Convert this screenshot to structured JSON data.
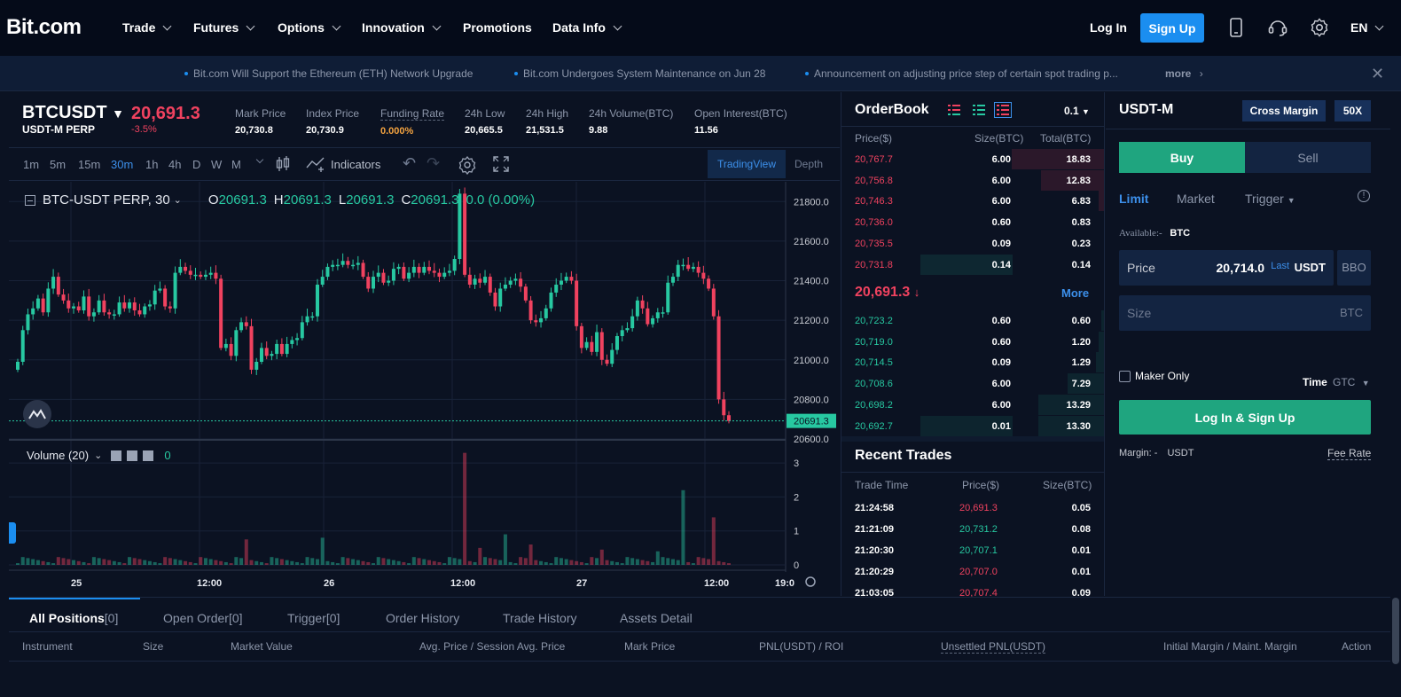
{
  "header": {
    "logo": "Bit.com",
    "nav": [
      {
        "label": "Trade",
        "dropdown": true
      },
      {
        "label": "Futures",
        "dropdown": true
      },
      {
        "label": "Options",
        "dropdown": true
      },
      {
        "label": "Innovation",
        "dropdown": true
      },
      {
        "label": "Promotions",
        "dropdown": false
      },
      {
        "label": "Data Info",
        "dropdown": true
      }
    ],
    "login": "Log In",
    "signup": "Sign Up",
    "lang": "EN"
  },
  "announcements": {
    "items": [
      "Bit.com Will Support the Ethereum (ETH) Network Upgrade",
      "Bit.com Undergoes System Maintenance on Jun 28",
      "Announcement on adjusting price step of certain spot trading p..."
    ],
    "more": "more"
  },
  "ticker": {
    "symbol": "BTCUSDT",
    "sub": "USDT-M PERP",
    "last": "20,691.3",
    "change": "-3.5%",
    "stats": [
      {
        "label": "Mark Price",
        "value": "20,730.8",
        "highlight": false
      },
      {
        "label": "Index Price",
        "value": "20,730.9",
        "highlight": false
      },
      {
        "label": "Funding Rate",
        "value": "0.000%",
        "highlight": true
      },
      {
        "label": "24h Low",
        "value": "20,665.5",
        "highlight": false
      },
      {
        "label": "24h High",
        "value": "21,531.5",
        "highlight": false
      },
      {
        "label": "24h Volume(BTC)",
        "value": "9.88",
        "highlight": false
      },
      {
        "label": "Open Interest(BTC)",
        "value": "11.56",
        "highlight": false
      }
    ]
  },
  "toolbar": {
    "timeframes": [
      "1m",
      "5m",
      "15m",
      "30m",
      "1h",
      "4h",
      "D",
      "W",
      "M"
    ],
    "active_tf": "30m",
    "indicators": "Indicators",
    "tradingview": "TradingView",
    "depth": "Depth"
  },
  "chart": {
    "legend_title": "BTC-USDT PERP, 30",
    "ohlc": {
      "O": "20691.3",
      "H": "20691.3",
      "L": "20691.3",
      "C": "20691.3",
      "chg": "0.0 (0.00%)"
    },
    "volume_label": "Volume (20)",
    "volume_value": "0",
    "price_axis": [
      "21800.0",
      "21600.0",
      "21400.0",
      "21200.0",
      "21000.0",
      "20800.0",
      "20600.0"
    ],
    "last_price_tag": "20691.3",
    "vol_axis": [
      "3",
      "2",
      "1",
      "0"
    ],
    "x_axis": [
      "25",
      "12:00",
      "26",
      "12:00",
      "27",
      "12:00",
      "19:0"
    ],
    "colors": {
      "up": "#27c8a1",
      "down": "#f0425f"
    }
  },
  "chart_data": {
    "type": "candlestick",
    "title": "BTC-USDT PERP, 30",
    "ylim": [
      20600,
      21900
    ],
    "close": [
      20990,
      21150,
      21230,
      21260,
      21310,
      21240,
      21360,
      21420,
      21330,
      21300,
      21260,
      21270,
      21250,
      21320,
      21220,
      21240,
      21300,
      21240,
      21230,
      21230,
      21290,
      21260,
      21290,
      21250,
      21230,
      21270,
      21280,
      21350,
      21360,
      21270,
      21260,
      21440,
      21470,
      21450,
      21430,
      21430,
      21420,
      21430,
      21440,
      21410,
      21060,
      21080,
      21020,
      21150,
      21190,
      21170,
      20950,
      20990,
      21060,
      21020,
      21030,
      21080,
      21030,
      21080,
      21100,
      21110,
      21190,
      21220,
      21220,
      21380,
      21420,
      21470,
      21480,
      21480,
      21500,
      21480,
      21480,
      21490,
      21420,
      21360,
      21420,
      21440,
      21390,
      21400,
      21460,
      21470,
      21410,
      21440,
      21470,
      21440,
      21470,
      21450,
      21440,
      21420,
      21440,
      21450,
      21510,
      21840,
      21430,
      21380,
      21410,
      21390,
      21420,
      21340,
      21270,
      21360,
      21380,
      21400,
      21410,
      21370,
      21300,
      21200,
      21190,
      21210,
      21260,
      21340,
      21380,
      21400,
      21420,
      21400,
      21170,
      21060,
      21090,
      21040,
      21140,
      21000,
      20980,
      21050,
      21120,
      21150,
      21160,
      21220,
      21300,
      21260,
      21180,
      21210,
      21240,
      21240,
      21390,
      21420,
      21480,
      21480,
      21460,
      21470,
      21440,
      21410,
      21360,
      21220,
      20800,
      20720,
      20691
    ]
  },
  "orderbook": {
    "title": "OrderBook",
    "step": "0.1",
    "headers": [
      "Price($)",
      "Size(BTC)",
      "Total(BTC)"
    ],
    "asks": [
      {
        "price": "20,767.7",
        "size": "6.00",
        "total": "18.83",
        "depth": 0.35,
        "sizebar": 0
      },
      {
        "price": "20,756.8",
        "size": "6.00",
        "total": "12.83",
        "depth": 0.24,
        "sizebar": 0
      },
      {
        "price": "20,746.3",
        "size": "6.00",
        "total": "6.83",
        "depth": 0.02,
        "sizebar": 0
      },
      {
        "price": "20,736.0",
        "size": "0.60",
        "total": "0.83",
        "depth": 0,
        "sizebar": 0
      },
      {
        "price": "20,735.5",
        "size": "0.09",
        "total": "0.23",
        "depth": 0,
        "sizebar": 0
      },
      {
        "price": "20,731.8",
        "size": "0.14",
        "total": "0.14",
        "depth": 0,
        "sizebar": 1
      }
    ],
    "mid_price": "20,691.3",
    "more": "More",
    "bids": [
      {
        "price": "20,723.2",
        "size": "0.60",
        "total": "0.60",
        "depth": 0.01,
        "sizebar": 0
      },
      {
        "price": "20,719.0",
        "size": "0.60",
        "total": "1.20",
        "depth": 0.02,
        "sizebar": 0
      },
      {
        "price": "20,714.5",
        "size": "0.09",
        "total": "1.29",
        "depth": 0.03,
        "sizebar": 0
      },
      {
        "price": "20,708.6",
        "size": "6.00",
        "total": "7.29",
        "depth": 0.14,
        "sizebar": 0
      },
      {
        "price": "20,698.2",
        "size": "6.00",
        "total": "13.29",
        "depth": 0.25,
        "sizebar": 0
      },
      {
        "price": "20,692.7",
        "size": "0.01",
        "total": "13.30",
        "depth": 0.25,
        "sizebar": 1
      }
    ]
  },
  "recent_trades": {
    "title": "Recent Trades",
    "headers": [
      "Trade Time",
      "Price($)",
      "Size(BTC)"
    ],
    "rows": [
      {
        "time": "21:24:58",
        "price": "20,691.3",
        "size": "0.05",
        "side": "sell"
      },
      {
        "time": "21:21:09",
        "price": "20,731.2",
        "size": "0.08",
        "side": "buy"
      },
      {
        "time": "21:20:30",
        "price": "20,707.1",
        "size": "0.01",
        "side": "buy"
      },
      {
        "time": "21:20:29",
        "price": "20,707.0",
        "size": "0.01",
        "side": "sell"
      },
      {
        "time": "21:03:05",
        "price": "20,707.4",
        "size": "0.09",
        "side": "sell"
      }
    ]
  },
  "order_form": {
    "title": "USDT-M",
    "margin_mode": "Cross Margin",
    "leverage": "50X",
    "buy": "Buy",
    "sell": "Sell",
    "order_types": [
      "Limit",
      "Market",
      "Trigger"
    ],
    "available_label": "Available:-",
    "available_unit": "BTC",
    "price_label": "Price",
    "price_value": "20,714.0",
    "price_last": "Last",
    "price_unit": "USDT",
    "bbo": "BBO",
    "size_placeholder": "Size",
    "size_unit": "BTC",
    "maker_only": "Maker Only",
    "time_label": "Time",
    "time_value": "GTC",
    "submit": "Log In & Sign Up",
    "margin_label": "Margin: -",
    "margin_unit": "USDT",
    "fee_rate": "Fee Rate"
  },
  "bottom": {
    "tabs": [
      {
        "label": "All Positions",
        "count": "[0]"
      },
      {
        "label": "Open Order",
        "count": "[0]"
      },
      {
        "label": "Trigger",
        "count": "[0]"
      },
      {
        "label": "Order History",
        "count": ""
      },
      {
        "label": "Trade History",
        "count": ""
      },
      {
        "label": "Assets Detail",
        "count": ""
      }
    ],
    "columns": [
      "Instrument",
      "Size",
      "Market Value",
      "Avg. Price / Session Avg. Price",
      "Mark Price",
      "PNL(USDT) / ROI",
      "Unsettled PNL(USDT)",
      "Initial Margin / Maint. Margin",
      "Action"
    ]
  }
}
